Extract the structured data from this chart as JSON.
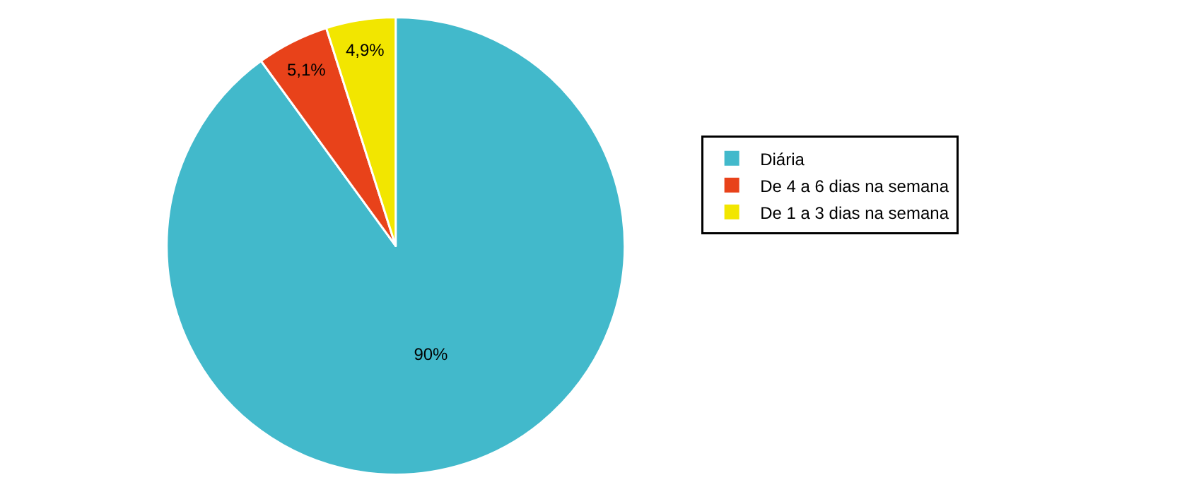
{
  "chart_data": {
    "type": "pie",
    "categories": [
      "Diária",
      "De 4 a 6 dias na semana",
      "De 1 a 3 dias na semana"
    ],
    "values": [
      90,
      5.1,
      4.9
    ],
    "value_labels": [
      "90%",
      "5,1%",
      "4,9%"
    ],
    "colors": [
      "#42b9cb",
      "#e8421a",
      "#f2e600"
    ],
    "legend": "right"
  }
}
